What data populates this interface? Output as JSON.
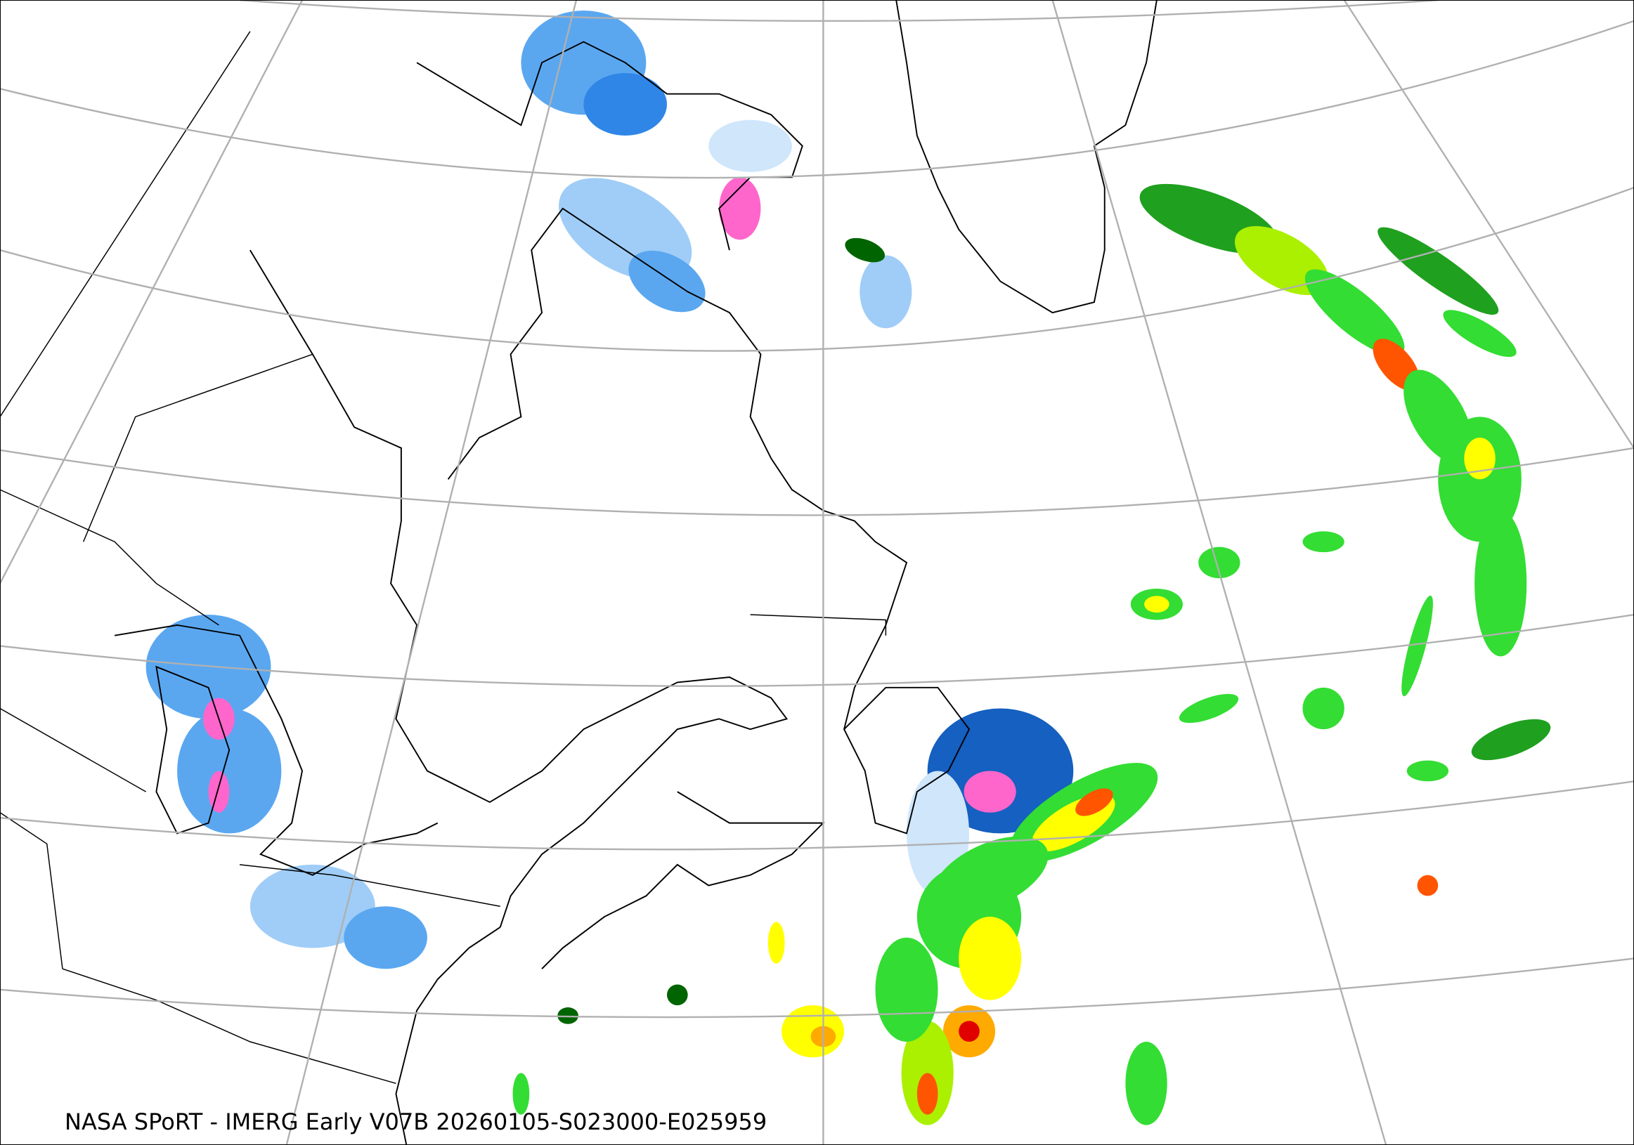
{
  "caption": "NASA SPoRT - IMERG Early V07B 20260105-S023000-E025959",
  "colors": {
    "graticule": "#b0b0b0",
    "coastline": "#000000",
    "precip_scale": [
      "#cfe6fb",
      "#9fcdf7",
      "#5aa7f0",
      "#2f86e6",
      "#1560c0",
      "#0a3f8a",
      "#ff66cc",
      "#e040a0",
      "#006400",
      "#1fa01f",
      "#33dd33",
      "#aaf000",
      "#ffff00",
      "#ffaa00",
      "#ff5500",
      "#e00000"
    ]
  }
}
